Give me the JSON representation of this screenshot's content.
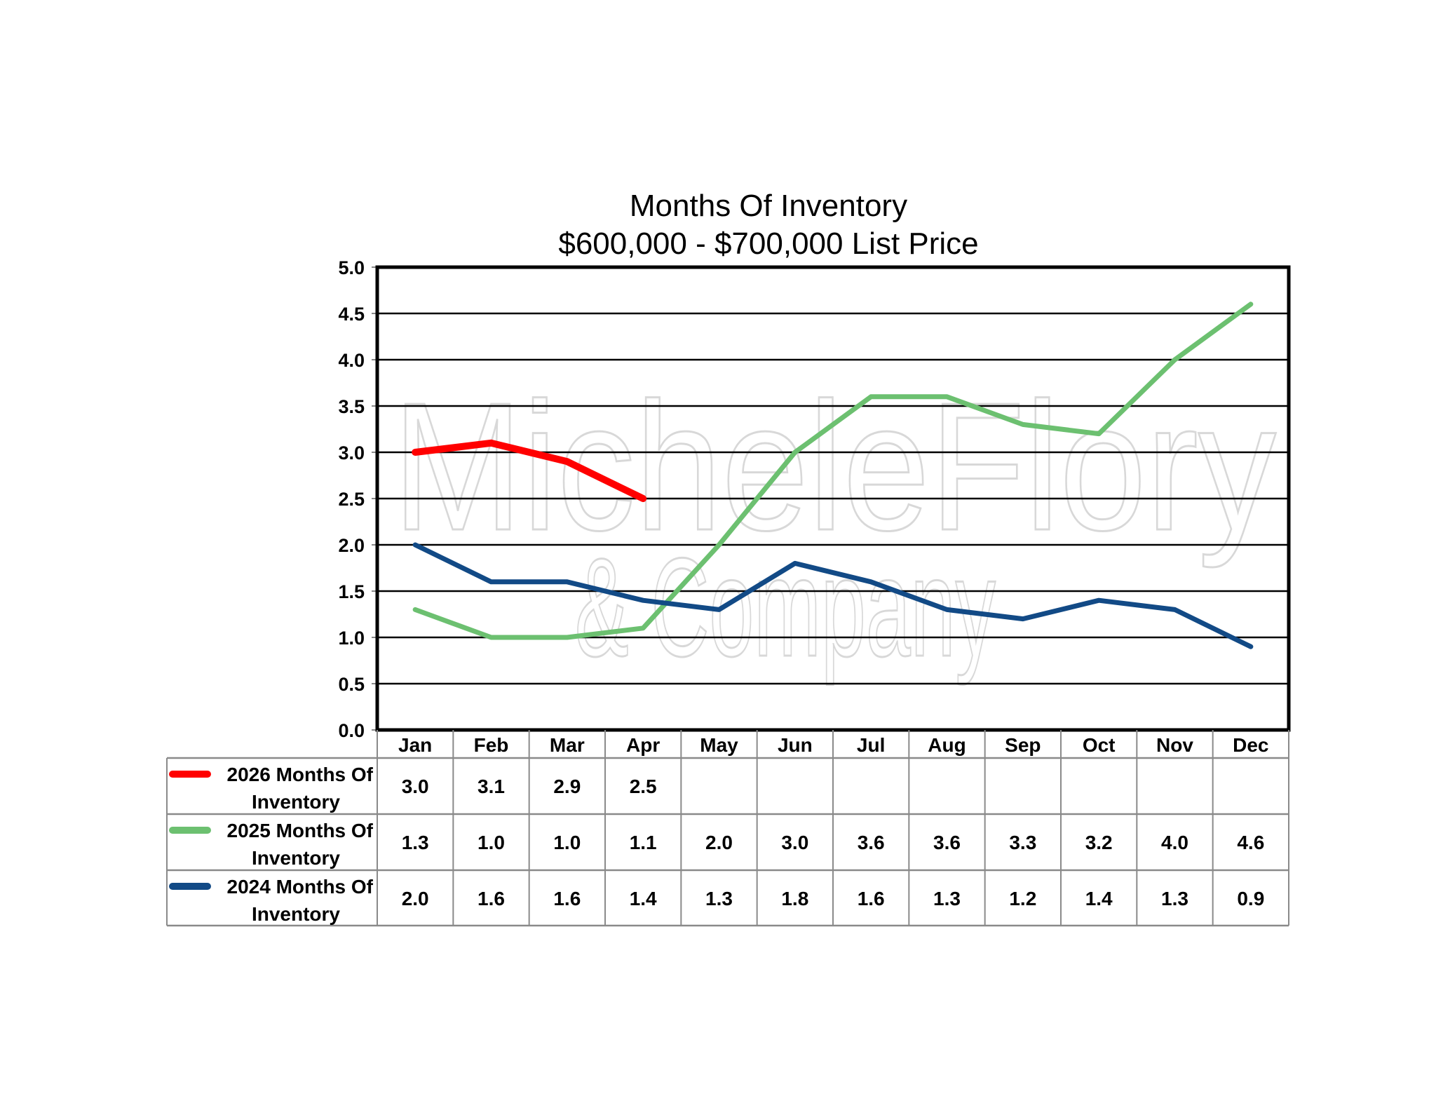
{
  "chart_data": {
    "type": "line",
    "title": "Months Of Inventory",
    "subtitle": "$600,000 - $700,000 List Price",
    "xlabel": "",
    "ylabel": "",
    "ylim": [
      0,
      5
    ],
    "yticks": [
      "0.0",
      "0.5",
      "1.0",
      "1.5",
      "2.0",
      "2.5",
      "3.0",
      "3.5",
      "4.0",
      "4.5",
      "5.0"
    ],
    "grid": true,
    "legend_placement": "data-table-left",
    "categories": [
      "Jan",
      "Feb",
      "Mar",
      "Apr",
      "May",
      "Jun",
      "Jul",
      "Aug",
      "Sep",
      "Oct",
      "Nov",
      "Dec"
    ],
    "series": [
      {
        "name": "2026 Months Of Inventory",
        "name_line1": "2026 Months Of",
        "name_line2": "Inventory",
        "color": "#ff0000",
        "width": 10,
        "values": [
          3.0,
          3.1,
          2.9,
          2.5,
          null,
          null,
          null,
          null,
          null,
          null,
          null,
          null
        ],
        "labels": [
          "3.0",
          "3.1",
          "2.9",
          "2.5",
          "",
          "",
          "",
          "",
          "",
          "",
          "",
          ""
        ]
      },
      {
        "name": "2025 Months Of Inventory",
        "name_line1": "2025 Months Of",
        "name_line2": "Inventory",
        "color": "#6cc070",
        "width": 7,
        "values": [
          1.3,
          1.0,
          1.0,
          1.1,
          2.0,
          3.0,
          3.6,
          3.6,
          3.3,
          3.2,
          4.0,
          4.6
        ],
        "labels": [
          "1.3",
          "1.0",
          "1.0",
          "1.1",
          "2.0",
          "3.0",
          "3.6",
          "3.6",
          "3.3",
          "3.2",
          "4.0",
          "4.6"
        ]
      },
      {
        "name": "2024 Months Of Inventory",
        "name_line1": "2024 Months Of",
        "name_line2": "Inventory",
        "color": "#124a86",
        "width": 7,
        "values": [
          2.0,
          1.6,
          1.6,
          1.4,
          1.3,
          1.8,
          1.6,
          1.3,
          1.2,
          1.4,
          1.3,
          0.9
        ],
        "labels": [
          "2.0",
          "1.6",
          "1.6",
          "1.4",
          "1.3",
          "1.8",
          "1.6",
          "1.3",
          "1.2",
          "1.4",
          "1.3",
          "0.9"
        ]
      }
    ]
  },
  "watermark": {
    "line1": "MicheleFlory",
    "line2": "& Company"
  }
}
